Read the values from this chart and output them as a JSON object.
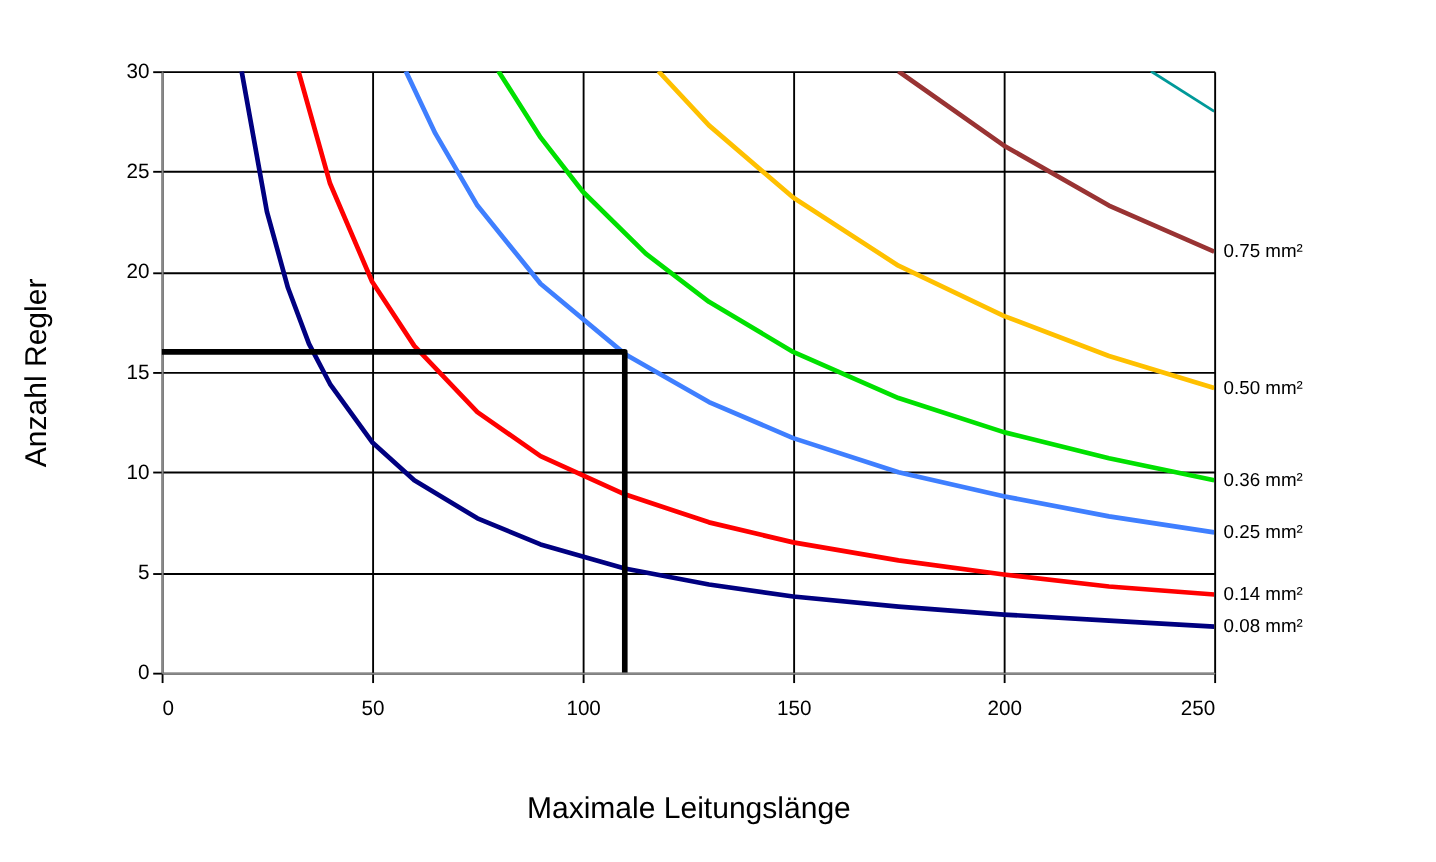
{
  "chart_data": {
    "type": "line",
    "xlabel": "Maximale Leitungslänge",
    "ylabel": "Anzahl Regler",
    "xlim": [
      0,
      250
    ],
    "ylim": [
      0,
      30
    ],
    "xticks": [
      0,
      50,
      100,
      150,
      200,
      250
    ],
    "yticks": [
      0,
      5,
      10,
      15,
      20,
      25,
      30
    ],
    "grid": true,
    "marker": "none",
    "line_style": "solid",
    "series": [
      {
        "name": "0.08 mm²",
        "color": "#000080",
        "x": [
          19,
          25,
          30,
          35,
          40,
          50,
          60,
          75,
          90,
          110,
          130,
          150,
          175,
          200,
          225,
          250
        ],
        "values": [
          30,
          23,
          19.2,
          16.4,
          14.4,
          11.5,
          9.6,
          7.7,
          6.4,
          5.2,
          4.4,
          3.8,
          3.3,
          2.9,
          2.6,
          2.3
        ]
      },
      {
        "name": "0.14 mm²",
        "color": "#ff0000",
        "x": [
          32.5,
          40,
          50,
          60,
          75,
          90,
          110,
          130,
          150,
          175,
          200,
          225,
          250
        ],
        "values": [
          30,
          24.4,
          19.5,
          16.3,
          13,
          10.8,
          8.9,
          7.5,
          6.5,
          5.6,
          4.9,
          4.3,
          3.9
        ]
      },
      {
        "name": "0.25 mm²",
        "color": "#3f7fff",
        "x": [
          58,
          65,
          75,
          90,
          110,
          130,
          150,
          175,
          200,
          225,
          250
        ],
        "values": [
          30,
          26.9,
          23.3,
          19.4,
          15.9,
          13.5,
          11.7,
          10,
          8.8,
          7.8,
          7
        ]
      },
      {
        "name": "0.36 mm²",
        "color": "#00e000",
        "x": [
          80,
          90,
          100,
          115,
          130,
          150,
          175,
          200,
          225,
          250
        ],
        "values": [
          30,
          26.7,
          24,
          20.9,
          18.5,
          16,
          13.7,
          12,
          10.7,
          9.6
        ]
      },
      {
        "name": "0.50 mm²",
        "color": "#ffc000",
        "x": [
          118,
          130,
          150,
          175,
          200,
          225,
          250
        ],
        "values": [
          30,
          27.3,
          23.7,
          20.3,
          17.8,
          15.8,
          14.2
        ]
      },
      {
        "name": "0.75 mm²",
        "color": "#993333",
        "x": [
          175,
          200,
          225,
          250
        ],
        "values": [
          30,
          26.3,
          23.3,
          21
        ]
      },
      {
        "color": "#009999",
        "x": [
          235,
          250
        ],
        "values": [
          30,
          28
        ]
      },
      {
        "color": "#000000",
        "x": [
          0,
          110,
          110
        ],
        "values": [
          16,
          16,
          0
        ]
      }
    ]
  }
}
